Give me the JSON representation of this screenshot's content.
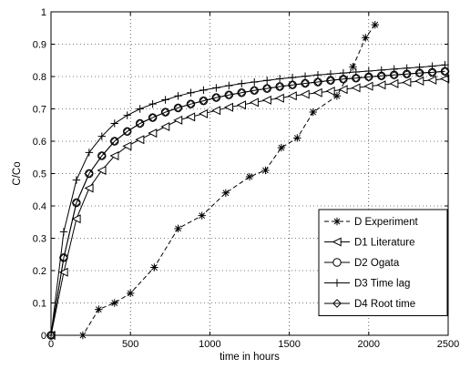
{
  "chart_data": {
    "type": "line",
    "xlabel": "time in hours",
    "ylabel": "C/Co",
    "xlim": [
      0,
      2500
    ],
    "ylim": [
      0,
      1
    ],
    "xticks": [
      0,
      500,
      1000,
      1500,
      2000,
      2500
    ],
    "yticks": [
      0,
      0.1,
      0.2,
      0.3,
      0.4,
      0.5,
      0.6,
      0.7,
      0.8,
      0.9,
      1
    ],
    "grid": "dotted",
    "legend_position": "bottom-right",
    "series": [
      {
        "name": "D Experiment",
        "marker": "asterisk",
        "line_style": "dashed",
        "x": [
          0,
          200,
          300,
          400,
          500,
          650,
          800,
          950,
          1100,
          1250,
          1350,
          1450,
          1550,
          1650,
          1800,
          1900,
          1980,
          2040
        ],
        "y": [
          0,
          0,
          0.08,
          0.1,
          0.13,
          0.21,
          0.33,
          0.37,
          0.44,
          0.49,
          0.51,
          0.58,
          0.61,
          0.69,
          0.74,
          0.83,
          0.92,
          0.96
        ]
      },
      {
        "name": "D1 Literature",
        "marker": "triangle-left",
        "line_style": "solid",
        "x": [
          0,
          80,
          160,
          240,
          320,
          400,
          480,
          560,
          640,
          720,
          800,
          880,
          960,
          1040,
          1120,
          1200,
          1280,
          1360,
          1440,
          1520,
          1600,
          1680,
          1760,
          1840,
          1920,
          2000,
          2080,
          2160,
          2240,
          2320,
          2400,
          2480
        ],
        "y": [
          0,
          0.195,
          0.36,
          0.455,
          0.51,
          0.555,
          0.585,
          0.605,
          0.625,
          0.645,
          0.665,
          0.675,
          0.685,
          0.695,
          0.705,
          0.712,
          0.72,
          0.727,
          0.733,
          0.74,
          0.745,
          0.75,
          0.755,
          0.76,
          0.765,
          0.77,
          0.774,
          0.778,
          0.782,
          0.786,
          0.789,
          0.793
        ]
      },
      {
        "name": "D2 Ogata",
        "marker": "circle",
        "line_style": "solid",
        "x": [
          0,
          80,
          160,
          240,
          320,
          400,
          480,
          560,
          640,
          720,
          800,
          880,
          960,
          1040,
          1120,
          1200,
          1280,
          1360,
          1440,
          1520,
          1600,
          1680,
          1760,
          1840,
          1920,
          2000,
          2080,
          2160,
          2240,
          2320,
          2400,
          2480
        ],
        "y": [
          0,
          0.24,
          0.41,
          0.5,
          0.555,
          0.6,
          0.63,
          0.655,
          0.673,
          0.69,
          0.703,
          0.715,
          0.725,
          0.735,
          0.743,
          0.75,
          0.757,
          0.763,
          0.769,
          0.774,
          0.779,
          0.783,
          0.788,
          0.792,
          0.795,
          0.799,
          0.802,
          0.805,
          0.808,
          0.811,
          0.813,
          0.816
        ]
      },
      {
        "name": "D3 Time lag",
        "marker": "plus",
        "line_style": "solid",
        "x": [
          0,
          80,
          160,
          240,
          320,
          400,
          480,
          560,
          640,
          720,
          800,
          880,
          960,
          1040,
          1120,
          1200,
          1280,
          1360,
          1440,
          1520,
          1600,
          1680,
          1760,
          1840,
          1920,
          2000,
          2080,
          2160,
          2240,
          2320,
          2400,
          2480
        ],
        "y": [
          0,
          0.32,
          0.48,
          0.565,
          0.615,
          0.655,
          0.68,
          0.7,
          0.715,
          0.728,
          0.74,
          0.75,
          0.758,
          0.765,
          0.772,
          0.778,
          0.783,
          0.788,
          0.793,
          0.797,
          0.801,
          0.805,
          0.808,
          0.811,
          0.814,
          0.817,
          0.82,
          0.823,
          0.826,
          0.829,
          0.832,
          0.836
        ]
      },
      {
        "name": "D4 Root time",
        "marker": "diamond",
        "line_style": "solid",
        "x": [
          0,
          80,
          160,
          240,
          320,
          400,
          480,
          560,
          640,
          720,
          800,
          880,
          960,
          1040,
          1120,
          1200,
          1280,
          1360,
          1440,
          1520,
          1600,
          1680,
          1760,
          1840,
          1920,
          2000,
          2080,
          2160,
          2240,
          2320,
          2400,
          2480
        ],
        "y": [
          0,
          0.24,
          0.41,
          0.5,
          0.555,
          0.6,
          0.63,
          0.655,
          0.673,
          0.69,
          0.703,
          0.715,
          0.725,
          0.735,
          0.743,
          0.75,
          0.757,
          0.763,
          0.769,
          0.774,
          0.779,
          0.783,
          0.788,
          0.792,
          0.795,
          0.799,
          0.802,
          0.805,
          0.808,
          0.811,
          0.813,
          0.816
        ]
      }
    ]
  }
}
